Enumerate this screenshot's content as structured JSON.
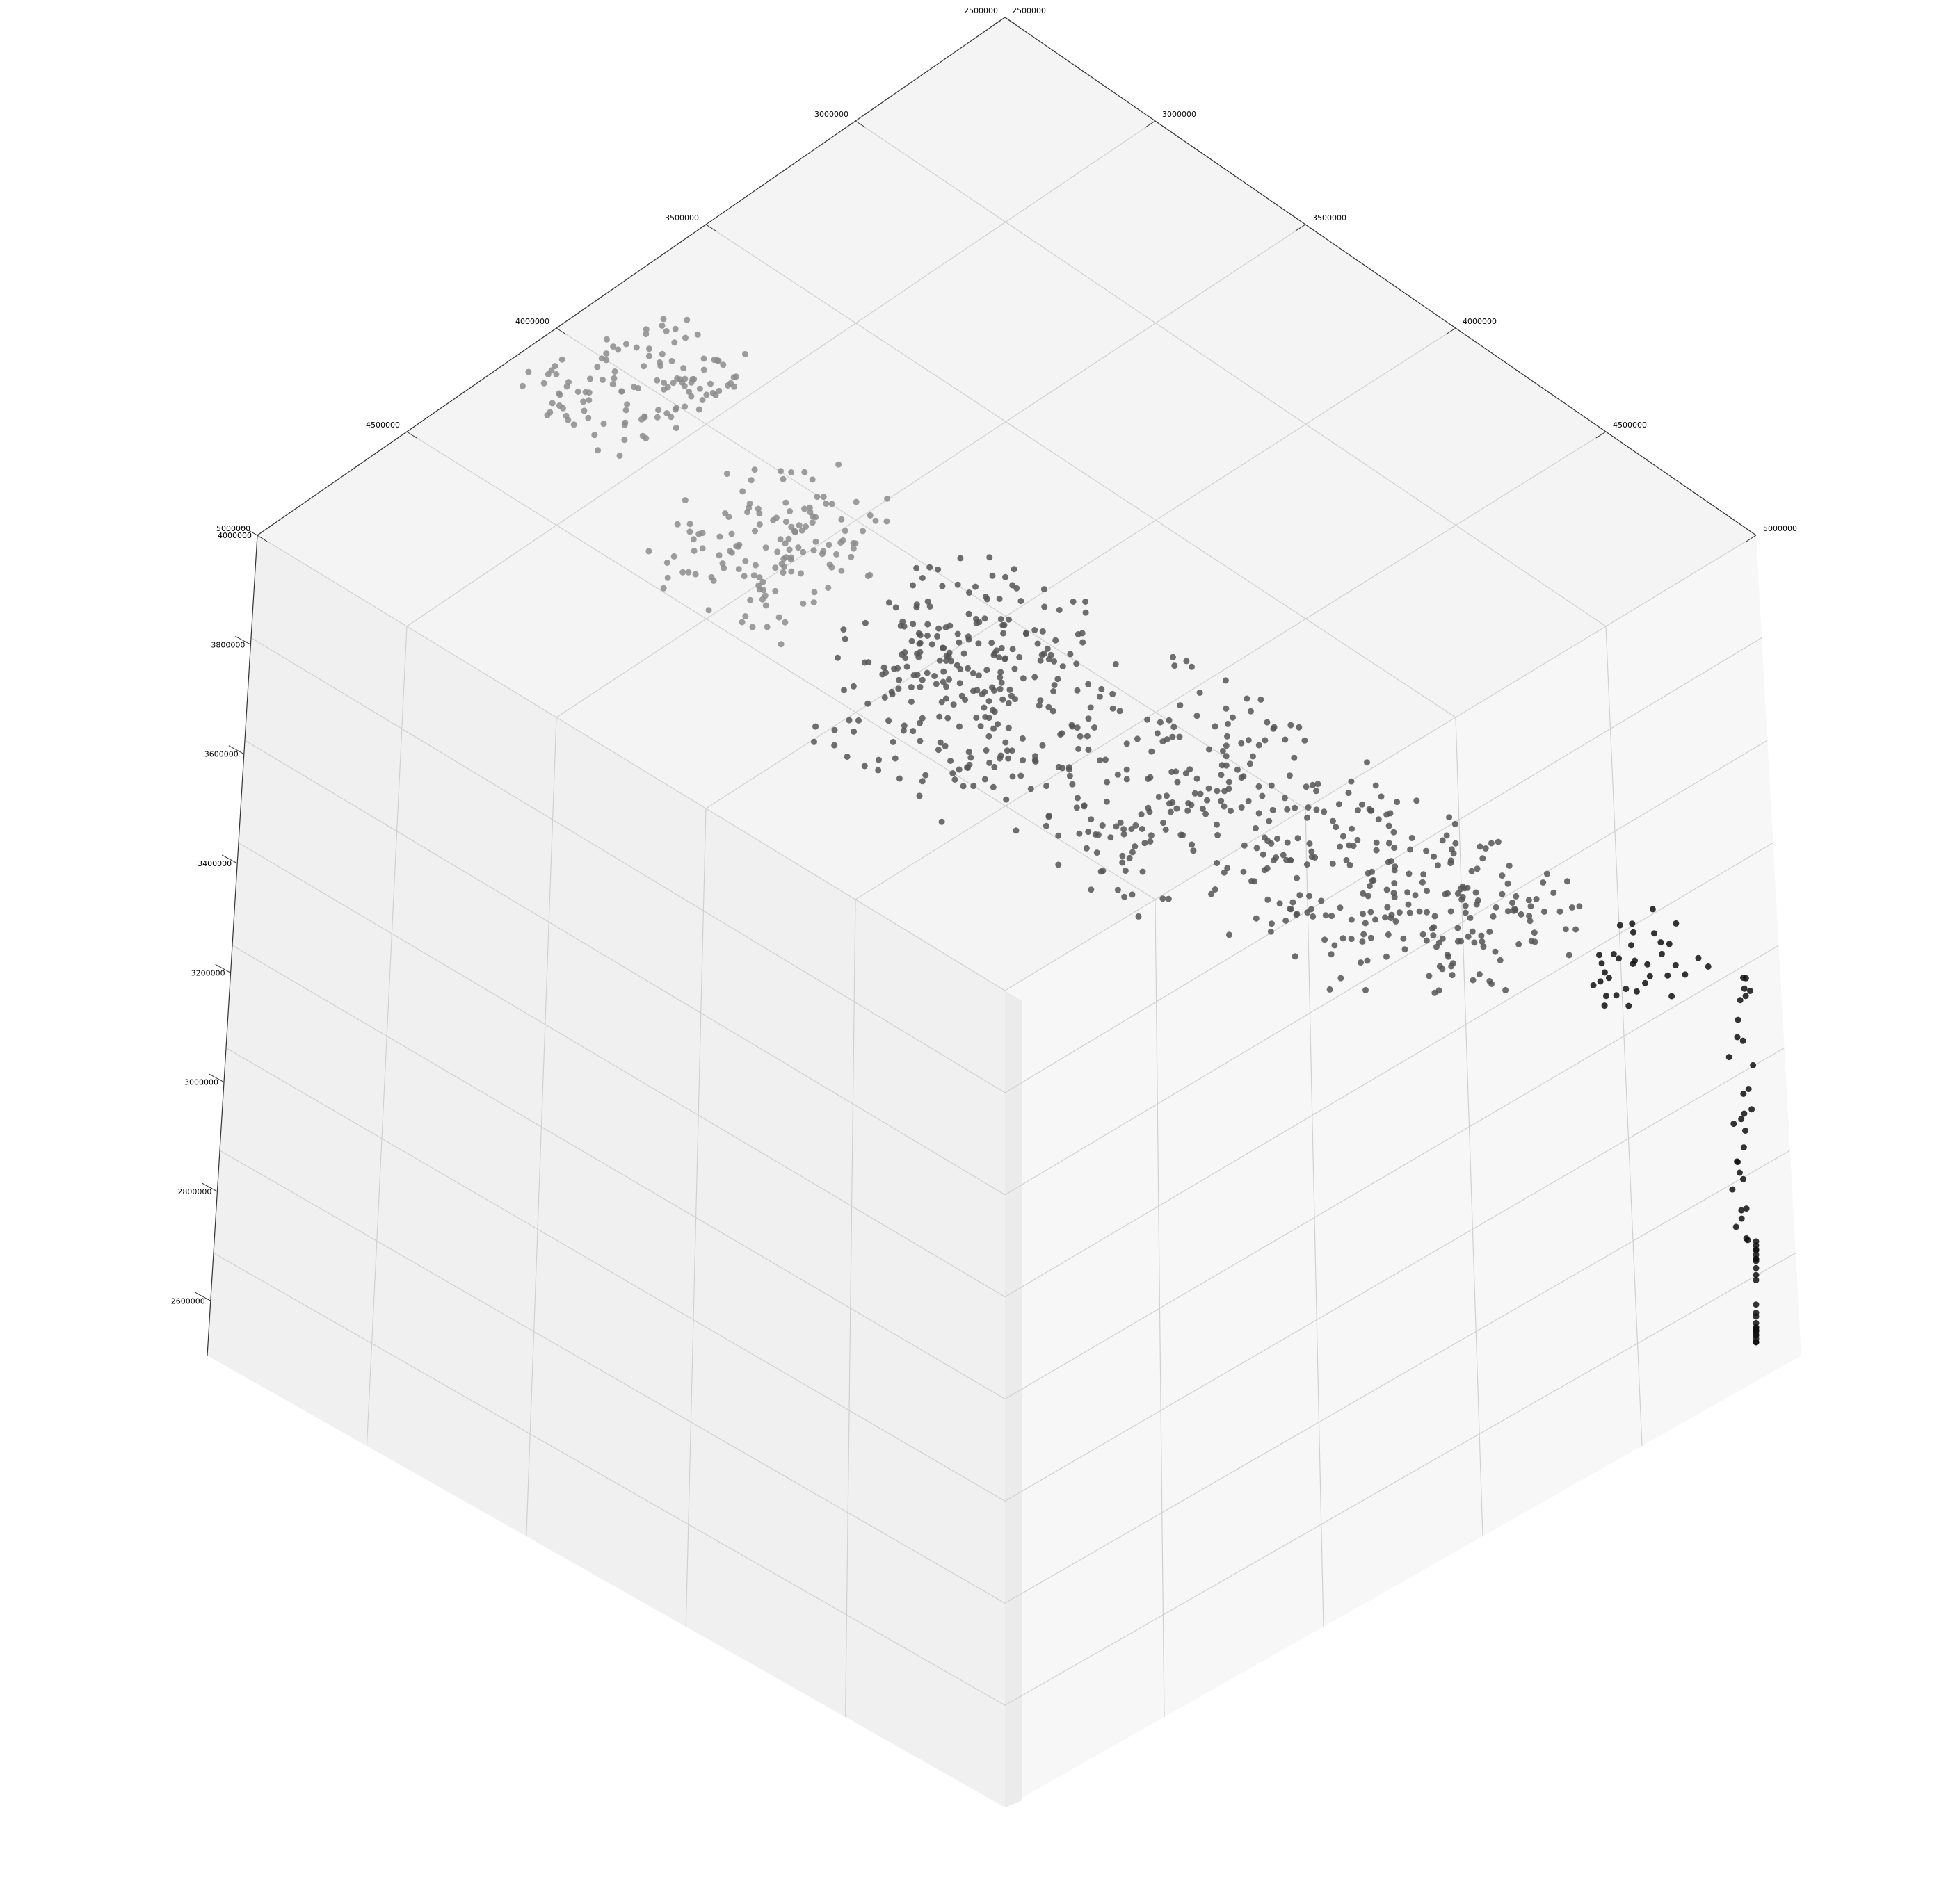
{
  "chart_data": {
    "type": "scatter",
    "projection": "3d",
    "title": "",
    "xlabel": "",
    "ylabel": "",
    "zlabel": "",
    "grid": true,
    "legend": "none",
    "pane_color": "#f2f2f2",
    "point_colors": {
      "north": "#8c8c8c",
      "central": "#555555",
      "south": "#111111"
    },
    "xlim": [
      2500000,
      5000000
    ],
    "ylim": [
      2500000,
      5000000
    ],
    "zlim": [
      2500000,
      4000000
    ],
    "x_ticks": [
      "2500000",
      "3000000",
      "3500000",
      "4000000",
      "4500000",
      "5000000"
    ],
    "y_ticks": [
      "2500000",
      "3000000",
      "3500000",
      "4000000",
      "4500000",
      "5000000"
    ],
    "z_ticks": [
      "2600000",
      "2800000",
      "3000000",
      "3200000",
      "3400000",
      "3600000",
      "3800000",
      "4000000"
    ],
    "regions": [
      {
        "name": "",
        "count": 120,
        "x": [
          2500000,
          2850000
        ],
        "y": [
          3350000,
          3850000
        ],
        "z": [
          3950000,
          4000000
        ]
      },
      {
        "name": "",
        "count": 140,
        "x": [
          3000000,
          3400000
        ],
        "y": [
          3300000,
          3750000
        ],
        "z": [
          3800000,
          3950000
        ]
      },
      {
        "name": "",
        "count": 260,
        "x": [
          3350000,
          3850000
        ],
        "y": [
          3500000,
          4050000
        ],
        "z": [
          3550000,
          3800000
        ]
      },
      {
        "name": "",
        "count": 190,
        "x": [
          3750000,
          4250000
        ],
        "y": [
          3750000,
          4350000
        ],
        "z": [
          3420000,
          3620000
        ]
      },
      {
        "name": "",
        "count": 160,
        "x": [
          4100000,
          4600000
        ],
        "y": [
          4050000,
          4550000
        ],
        "z": [
          3300000,
          3460000
        ]
      },
      {
        "name": "",
        "count": 80,
        "x": [
          4400000,
          4750000
        ],
        "y": [
          4300000,
          4700000
        ],
        "z": [
          3250000,
          3380000
        ]
      },
      {
        "name": "",
        "count": 35,
        "x": [
          4750000,
          5000000
        ],
        "y": [
          4600000,
          4900000
        ],
        "z": [
          3200000,
          3300000
        ]
      },
      {
        "name": "",
        "count": 30,
        "x": [
          4950000,
          5000000
        ],
        "y": [
          4950000,
          5000000
        ],
        "z": [
          2700000,
          3200000
        ]
      },
      {
        "name": "",
        "count": 25,
        "x": [
          5000000,
          5000000
        ],
        "y": [
          5000000,
          5000000
        ],
        "z": [
          2500000,
          2700000
        ]
      }
    ]
  }
}
